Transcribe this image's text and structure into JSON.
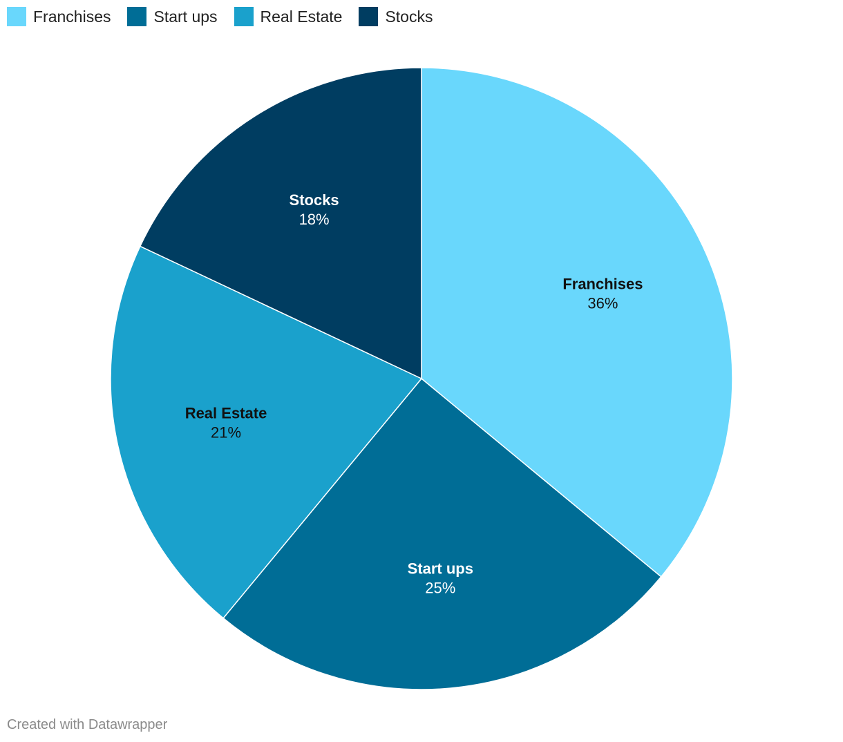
{
  "chart_data": {
    "type": "pie",
    "categories": [
      "Franchises",
      "Start ups",
      "Real Estate",
      "Stocks"
    ],
    "values": [
      36,
      25,
      21,
      18
    ],
    "value_labels": [
      "36%",
      "25%",
      "21%",
      "18%"
    ],
    "colors": [
      "#69d7fc",
      "#006d96",
      "#1aa1cc",
      "#003d61"
    ],
    "label_colors": [
      "#111111",
      "#ffffff",
      "#111111",
      "#ffffff"
    ],
    "legend_position": "top-left",
    "start_angle": "12 o'clock",
    "direction": "clockwise"
  },
  "footer": {
    "credit": "Created with Datawrapper"
  }
}
